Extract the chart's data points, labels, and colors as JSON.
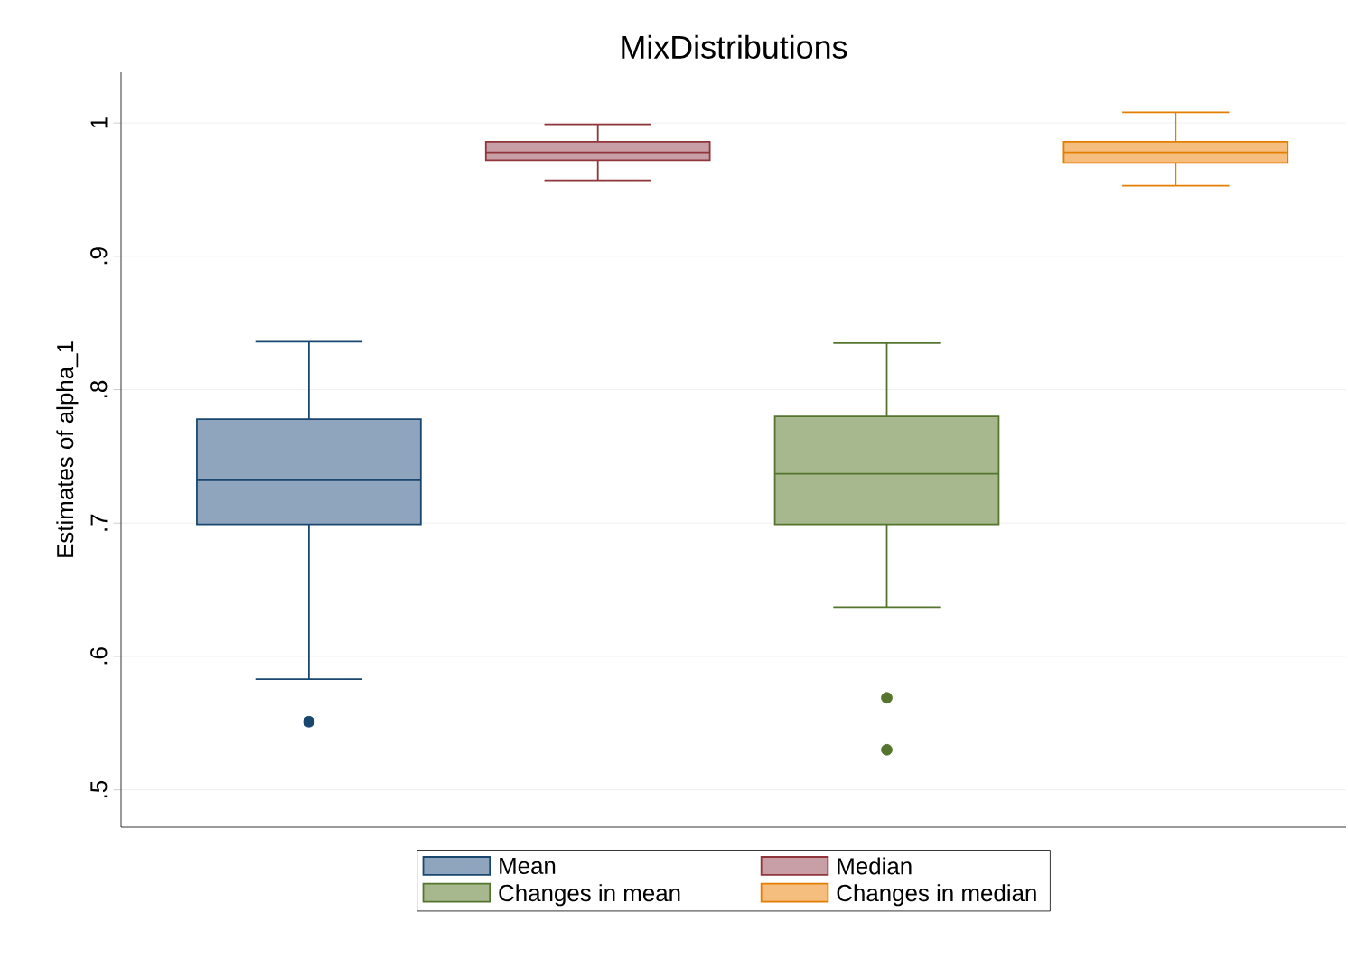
{
  "chart_data": {
    "type": "box",
    "title": "MixDistributions",
    "ylabel": "Estimates of alpha_1",
    "categories": [
      null,
      null,
      null,
      null
    ],
    "ylim": [
      0.472,
      1.038
    ],
    "yticks": [
      {
        "value": 0.5,
        "label": ".5"
      },
      {
        "value": 0.6,
        "label": ".6"
      },
      {
        "value": 0.7,
        "label": ".7"
      },
      {
        "value": 0.8,
        "label": ".8"
      },
      {
        "value": 0.9,
        "label": ".9"
      },
      1
    ],
    "grid": "y",
    "legend": "bottom",
    "marker": "circle",
    "series": [
      {
        "name": "Mean",
        "color": "#8ea5bd",
        "boxes": [
          {
            "low": 0.583,
            "q1": 0.699,
            "median": 0.732,
            "q3": 0.778,
            "high": 0.836,
            "outliers": [
              0.551
            ]
          },
          null,
          null,
          null
        ]
      },
      {
        "name": "Median",
        "color": "#c89fa6",
        "boxes": [
          null,
          {
            "low": 0.957,
            "q1": 0.972,
            "median": 0.978,
            "q3": 0.986,
            "high": 0.999
          },
          null,
          null
        ]
      },
      {
        "name": "Changes in mean",
        "color": "#a7b88e",
        "boxes": [
          null,
          null,
          {
            "low": 0.637,
            "q1": 0.699,
            "median": 0.737,
            "q3": 0.78,
            "high": 0.835,
            "outliers": [
              0.569,
              0.53
            ]
          },
          null
        ]
      },
      {
        "name": "Changes in median",
        "color": "#f6be7e",
        "boxes": [
          null,
          null,
          null,
          {
            "low": 0.953,
            "q1": 0.97,
            "median": 0.978,
            "q3": 0.986,
            "high": 1.008
          }
        ]
      }
    ]
  }
}
